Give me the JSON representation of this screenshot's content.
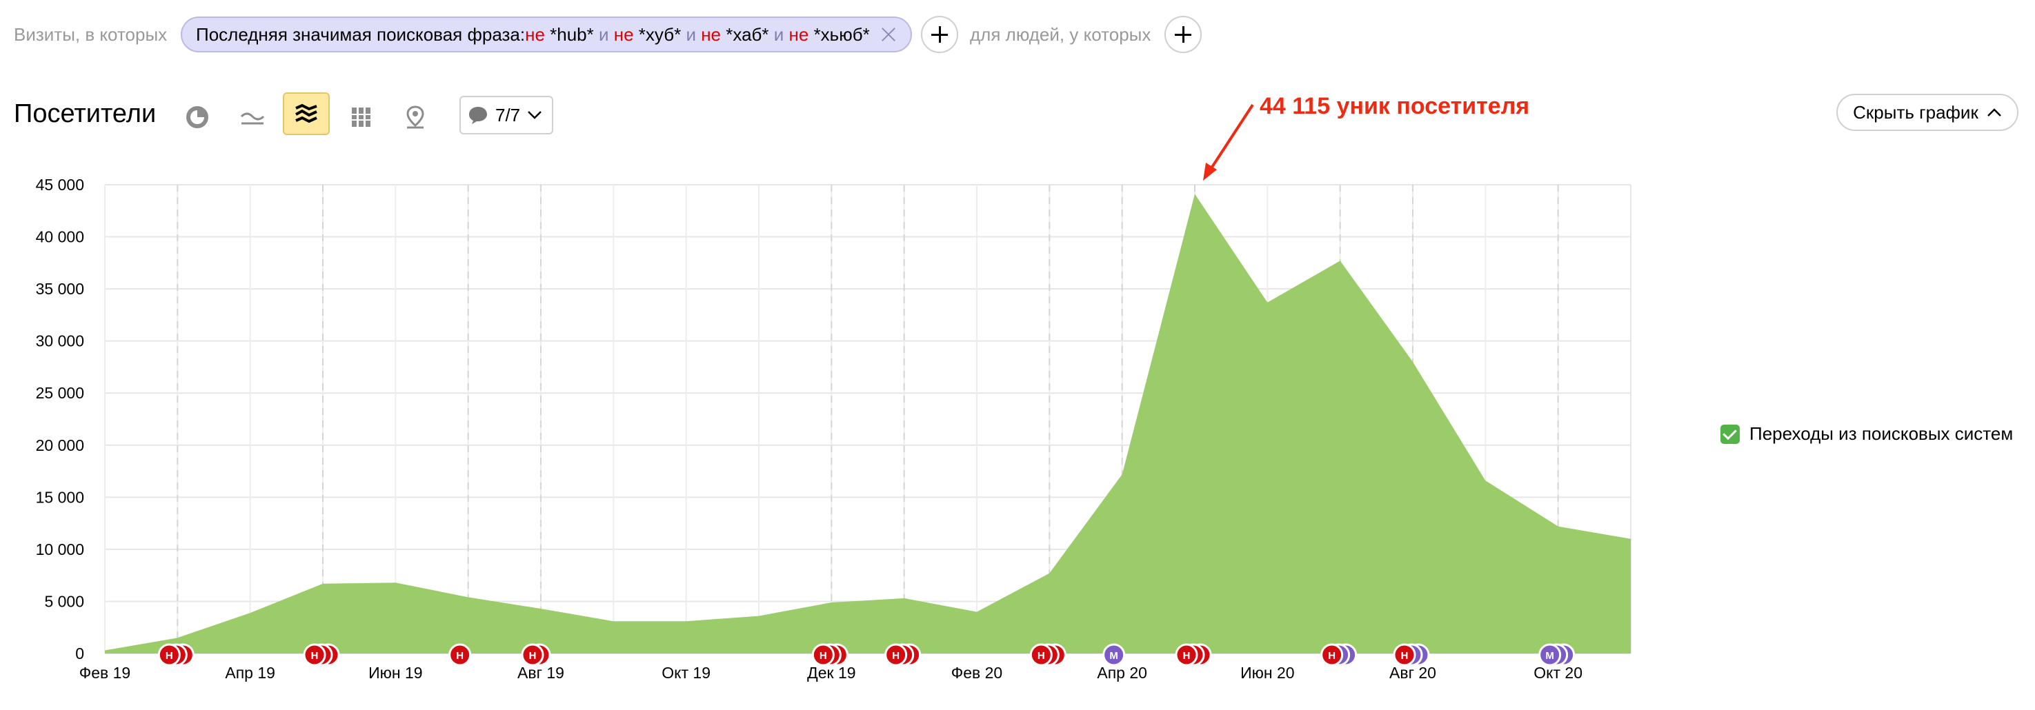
{
  "filter": {
    "prefix": "Визиты, в которых",
    "chip": {
      "label": "Последняя значимая поисковая фраза:",
      "terms": [
        {
          "neg": "не",
          "value": "*hub*",
          "conj": "и"
        },
        {
          "neg": "не",
          "value": "*хуб*",
          "conj": "и"
        },
        {
          "neg": "не",
          "value": "*хаб*",
          "conj": "и"
        },
        {
          "neg": "не",
          "value": "*хьюб*",
          "conj": ""
        }
      ]
    },
    "suffix": "для людей, у которых"
  },
  "toolbar": {
    "title": "Посетители",
    "icons": [
      "pie-chart-icon",
      "line-chart-icon",
      "area-stacked-icon",
      "bar-chart-icon",
      "map-pin-icon"
    ],
    "active_icon": "area-stacked-icon",
    "annotations_dropdown": {
      "icon": "speech-bubble-icon",
      "value": "7/7"
    },
    "hide_chart_label": "Скрыть график"
  },
  "annotation_text": "44 115 уник посетителя",
  "legend": {
    "label": "Переходы из поисковых систем",
    "checked": true,
    "color": "#54b348"
  },
  "chart_data": {
    "type": "area",
    "title": "",
    "xlabel": "",
    "ylabel": "",
    "ylim": [
      0,
      45000
    ],
    "yticks": [
      "0",
      "5 000",
      "10 000",
      "15 000",
      "20 000",
      "25 000",
      "30 000",
      "35 000",
      "40 000",
      "45 000"
    ],
    "x_labels": [
      "Фев 19",
      "Апр 19",
      "Июн 19",
      "Авг 19",
      "Окт 19",
      "Дек 19",
      "Фев 20",
      "Апр 20",
      "Июн 20",
      "Авг 20",
      "Окт 20"
    ],
    "x": [
      "2019-02",
      "2019-03",
      "2019-04",
      "2019-05",
      "2019-06",
      "2019-07",
      "2019-08",
      "2019-09",
      "2019-10",
      "2019-11",
      "2019-12",
      "2020-01",
      "2020-02",
      "2020-03",
      "2020-04",
      "2020-05",
      "2020-06",
      "2020-07",
      "2020-08",
      "2020-09",
      "2020-10",
      "2020-11"
    ],
    "grid": true,
    "legend_position": "right",
    "series": [
      {
        "name": "Переходы из поисковых систем",
        "color": "#9bcc69",
        "values": [
          300,
          1500,
          3900,
          6700,
          6800,
          5400,
          4300,
          3100,
          3100,
          3600,
          4900,
          5300,
          4000,
          7700,
          17200,
          44115,
          33700,
          37700,
          28000,
          16600,
          12200,
          11000
        ]
      }
    ],
    "event_markers": [
      {
        "x": "2019-03",
        "letters": [
          "Н",
          "",
          ""
        ],
        "colors": [
          "#d10b10",
          "#d10b10",
          "#d10b10"
        ]
      },
      {
        "x": "2019-05",
        "letters": [
          "Н",
          "",
          ""
        ],
        "colors": [
          "#d10b10",
          "#d10b10",
          "#d10b10"
        ]
      },
      {
        "x": "2019-07",
        "letters": [
          "Н"
        ],
        "colors": [
          "#d10b10"
        ]
      },
      {
        "x": "2019-08",
        "letters": [
          "Н",
          ""
        ],
        "colors": [
          "#d10b10",
          "#d10b10"
        ]
      },
      {
        "x": "2019-12",
        "letters": [
          "Н",
          "",
          ""
        ],
        "colors": [
          "#d10b10",
          "#d10b10",
          "#d10b10"
        ]
      },
      {
        "x": "2020-01",
        "letters": [
          "Н",
          "",
          ""
        ],
        "colors": [
          "#d10b10",
          "#d10b10",
          "#d10b10"
        ]
      },
      {
        "x": "2020-03",
        "letters": [
          "Н",
          "",
          ""
        ],
        "colors": [
          "#d10b10",
          "#d10b10",
          "#d10b10"
        ]
      },
      {
        "x": "2020-04",
        "letters": [
          "М"
        ],
        "colors": [
          "#7b5cc6"
        ]
      },
      {
        "x": "2020-05",
        "letters": [
          "Н",
          "",
          ""
        ],
        "colors": [
          "#d10b10",
          "#d10b10",
          "#d10b10"
        ]
      },
      {
        "x": "2020-07",
        "letters": [
          "Н",
          "",
          ""
        ],
        "colors": [
          "#d10b10",
          "#7b5cc6",
          "#7b5cc6"
        ]
      },
      {
        "x": "2020-08",
        "letters": [
          "Н",
          "",
          ""
        ],
        "colors": [
          "#d10b10",
          "#7b5cc6",
          "#7b5cc6"
        ]
      },
      {
        "x": "2020-10",
        "letters": [
          "М",
          "",
          ""
        ],
        "colors": [
          "#7b5cc6",
          "#7b5cc6",
          "#7b5cc6"
        ]
      }
    ]
  }
}
